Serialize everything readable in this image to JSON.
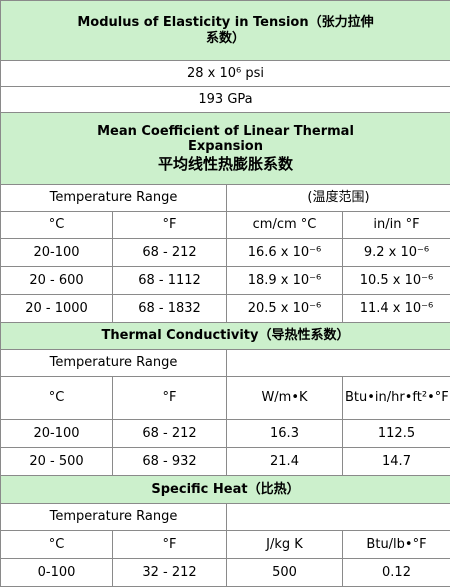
{
  "modulus": {
    "title_line1": "Modulus of Elasticity in Tension（张力拉伸",
    "title_line2": "系数）",
    "value_psi": "28 x 10⁶ psi",
    "value_gpa": "193 GPa"
  },
  "expansion": {
    "title_line1": "Mean Coefficient of Linear Thermal",
    "title_line2": "Expansion",
    "title_cn": "平均线性热膨胀系数",
    "temp_range_label": "Temperature Range",
    "temp_range_cn": "(温度范围)",
    "col_c": "°C",
    "col_f": "°F",
    "col_cm": "cm/cm °C",
    "col_in": "in/in °F",
    "rows": [
      {
        "c": "20-100",
        "f": "68 - 212",
        "cm": "16.6 x 10⁻⁶",
        "in": "9.2 x 10⁻⁶"
      },
      {
        "c": "20 - 600",
        "f": "68 - 1112",
        "cm": "18.9 x 10⁻⁶",
        "in": "10.5 x 10⁻⁶"
      },
      {
        "c": "20 - 1000",
        "f": "68 - 1832",
        "cm": "20.5 x 10⁻⁶",
        "in": "11.4 x 10⁻⁶"
      }
    ]
  },
  "conductivity": {
    "title": "Thermal Conductivity（导热性系数）",
    "temp_range_label": "Temperature Range",
    "col_c": "°C",
    "col_f": "°F",
    "col_si": "W/m•K",
    "col_imp": "Btu•in/hr•ft²•°F",
    "rows": [
      {
        "c": "20-100",
        "f": "68 - 212",
        "si": "16.3",
        "imp": "112.5"
      },
      {
        "c": "20 - 500",
        "f": "68 - 932",
        "si": "21.4",
        "imp": "14.7"
      }
    ]
  },
  "specific_heat": {
    "title": "Specific Heat（比热）",
    "temp_range_label": "Temperature Range",
    "col_c": "°C",
    "col_f": "°F",
    "col_si": "J/kg K",
    "col_imp": "Btu/lb•°F",
    "rows": [
      {
        "c": "0-100",
        "f": "32 - 212",
        "si": "500",
        "imp": "0.12"
      }
    ]
  }
}
